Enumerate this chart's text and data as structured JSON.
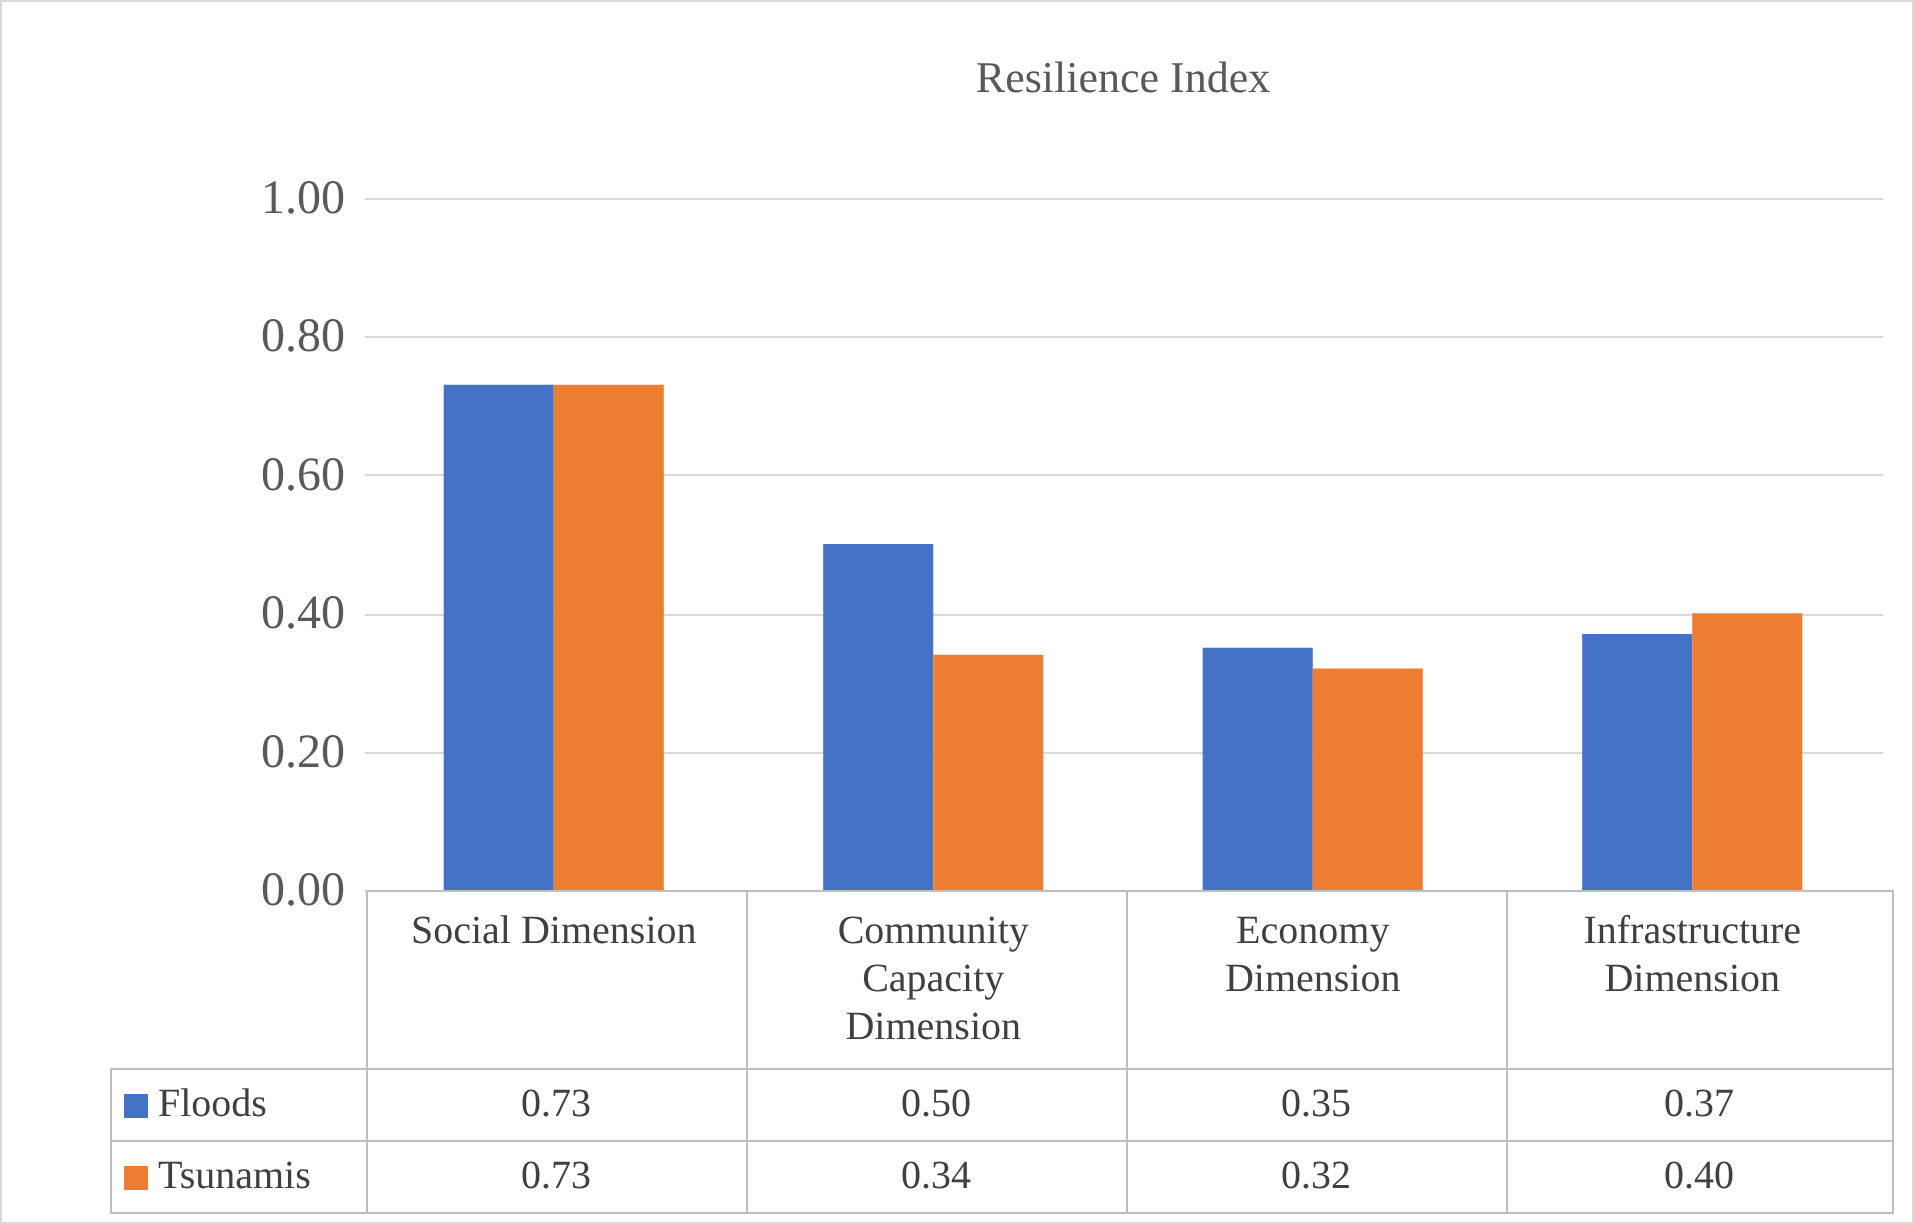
{
  "chart_data": {
    "type": "bar",
    "title": "Resilience Index",
    "categories": [
      "Social Dimension",
      "Community Capacity Dimension",
      "Economy Dimension",
      "Infrastructure Dimension"
    ],
    "series": [
      {
        "name": "Floods",
        "color": "#4472c4",
        "values": [
          0.73,
          0.5,
          0.35,
          0.37
        ],
        "value_labels": [
          "0.73",
          "0.50",
          "0.35",
          "0.37"
        ]
      },
      {
        "name": "Tsunamis",
        "color": "#ed7d31",
        "values": [
          0.73,
          0.34,
          0.32,
          0.4
        ],
        "value_labels": [
          "0.73",
          "0.34",
          "0.32",
          "0.40"
        ]
      }
    ],
    "ylim": [
      0,
      1
    ],
    "yticks": [
      {
        "value": 0,
        "label": "0.00"
      },
      {
        "value": 0.2,
        "label": "0.20"
      },
      {
        "value": 0.4,
        "label": "0.40"
      },
      {
        "value": 0.6,
        "label": "0.60"
      },
      {
        "value": 0.8,
        "label": "0.80"
      },
      {
        "value": 1,
        "label": "1.00"
      }
    ],
    "grid": "y",
    "legend": "bottom"
  }
}
